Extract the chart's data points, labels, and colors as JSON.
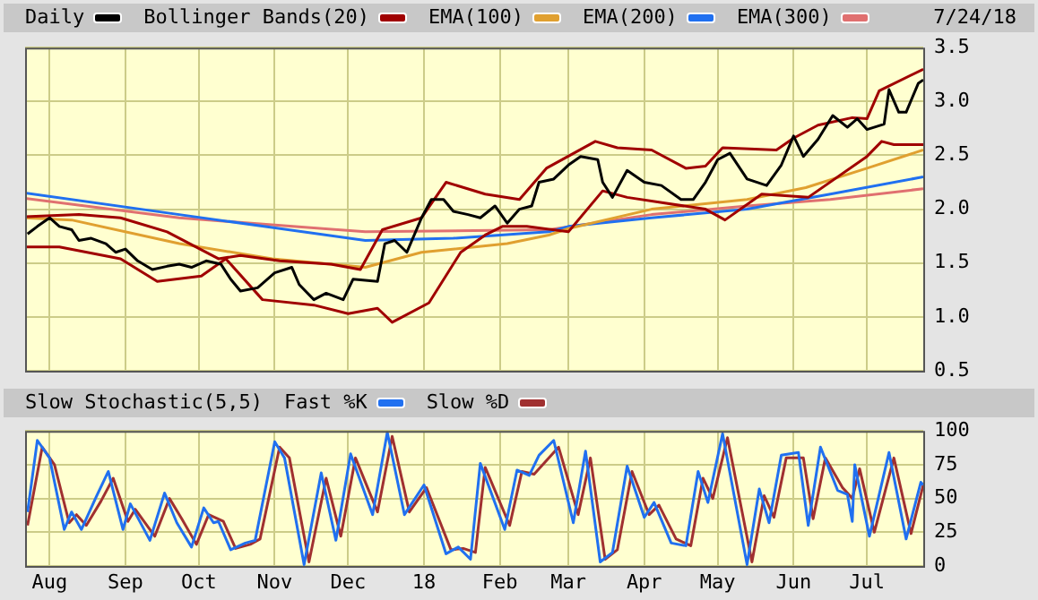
{
  "chart_data": [
    {
      "type": "line",
      "annotations": [
        "7/24/18"
      ],
      "legend": "top left",
      "grid": true,
      "marker": "none",
      "line_style": "solid",
      "tick_labels": "y",
      "xlim": [
        "2017-07-22",
        "2018-07-24"
      ],
      "xticks": [
        {
          "value": "2017-08-01",
          "label": null
        },
        {
          "value": "2017-09-01",
          "label": null
        },
        {
          "value": "2017-10-01",
          "label": null
        },
        {
          "value": "2017-11-01",
          "label": null
        },
        {
          "value": "2017-12-01",
          "label": null
        },
        {
          "value": "2018-01-01",
          "label": null
        },
        {
          "value": "2018-02-01",
          "label": null
        },
        {
          "value": "2018-03-01",
          "label": null
        },
        {
          "value": "2018-04-01",
          "label": null
        },
        {
          "value": "2018-05-01",
          "label": null
        },
        {
          "value": "2018-06-01",
          "label": null
        },
        {
          "value": "2018-07-01",
          "label": null
        }
      ],
      "ylim": [
        0.5,
        3.5
      ],
      "yticks": [
        0.5,
        {
          "value": 1,
          "label": "1.0"
        },
        1.5,
        {
          "value": 2,
          "label": "2.0"
        },
        2.5,
        {
          "value": 3,
          "label": "3.0"
        },
        3.5
      ],
      "series": [
        {
          "name": "Daily",
          "color": "#000000",
          "x": [
            "2017-07-23",
            "2017-07-27",
            "2017-08-01",
            "2017-08-05",
            "2017-08-10",
            "2017-08-13",
            "2017-08-18",
            "2017-08-24",
            "2017-08-28",
            "2017-09-01",
            "2017-09-06",
            "2017-09-12",
            "2017-09-18",
            "2017-09-23",
            "2017-09-28",
            "2017-10-04",
            "2017-10-10",
            "2017-10-14",
            "2017-10-18",
            "2017-10-25",
            "2017-11-01",
            "2017-11-08",
            "2017-11-11",
            "2017-11-17",
            "2017-11-22",
            "2017-11-29",
            "2017-12-03",
            "2017-12-13",
            "2017-12-16",
            "2017-12-20",
            "2017-12-25",
            "2017-12-31",
            "2018-01-04",
            "2018-01-09",
            "2018-01-13",
            "2018-01-19",
            "2018-01-24",
            "2018-01-30",
            "2018-02-04",
            "2018-02-09",
            "2018-02-14",
            "2018-02-17",
            "2018-02-23",
            "2018-03-01",
            "2018-03-06",
            "2018-03-13",
            "2018-03-15",
            "2018-03-19",
            "2018-03-25",
            "2018-04-01",
            "2018-04-08",
            "2018-04-16",
            "2018-04-21",
            "2018-04-26",
            "2018-05-01",
            "2018-05-06",
            "2018-05-13",
            "2018-05-21",
            "2018-05-27",
            "2018-06-01",
            "2018-06-05",
            "2018-06-11",
            "2018-06-17",
            "2018-06-23",
            "2018-06-27",
            "2018-07-01",
            "2018-07-08",
            "2018-07-10",
            "2018-07-14",
            "2018-07-17",
            "2018-07-22",
            "2018-07-24"
          ],
          "values": [
            1.77,
            1.84,
            1.92,
            1.84,
            1.81,
            1.71,
            1.73,
            1.68,
            1.6,
            1.63,
            1.52,
            1.44,
            1.47,
            1.49,
            1.46,
            1.52,
            1.49,
            1.35,
            1.24,
            1.27,
            1.41,
            1.46,
            1.3,
            1.16,
            1.22,
            1.16,
            1.35,
            1.33,
            1.68,
            1.71,
            1.6,
            1.92,
            2.09,
            2.09,
            1.98,
            1.95,
            1.92,
            2.03,
            1.87,
            2.0,
            2.03,
            2.25,
            2.28,
            2.41,
            2.49,
            2.46,
            2.25,
            2.11,
            2.36,
            2.25,
            2.22,
            2.09,
            2.09,
            2.25,
            2.46,
            2.52,
            2.28,
            2.22,
            2.41,
            2.68,
            2.49,
            2.65,
            2.87,
            2.76,
            2.84,
            2.74,
            2.79,
            3.11,
            2.9,
            2.9,
            3.17,
            3.2
          ]
        },
        {
          "name": "Bollinger Bands(20)",
          "color": "#a00000",
          "x": [
            "2017-07-22",
            "2017-08-13",
            "2017-08-30",
            "2017-09-18",
            "2017-10-09",
            "2017-10-18",
            "2017-11-03",
            "2017-11-24",
            "2017-12-06",
            "2017-12-15",
            "2017-12-31",
            "2018-01-10",
            "2018-01-26",
            "2018-02-09",
            "2018-02-20",
            "2018-03-12",
            "2018-03-21",
            "2018-04-04",
            "2018-04-18",
            "2018-04-26",
            "2018-05-03",
            "2018-05-25",
            "2018-06-01",
            "2018-06-11",
            "2018-06-25",
            "2018-07-01",
            "2018-07-06",
            "2018-07-24"
          ],
          "values": [
            1.93,
            1.95,
            1.92,
            1.79,
            1.54,
            1.57,
            1.52,
            1.49,
            1.44,
            1.81,
            1.92,
            2.25,
            2.14,
            2.09,
            2.38,
            2.63,
            2.57,
            2.55,
            2.38,
            2.4,
            2.57,
            2.55,
            2.66,
            2.78,
            2.85,
            2.84,
            3.1,
            3.3
          ]
        },
        {
          "color": "#a00000",
          "x": [
            "2017-07-22",
            "2017-08-05",
            "2017-08-30",
            "2017-09-14",
            "2017-10-02",
            "2017-10-12",
            "2017-10-27",
            "2017-11-17",
            "2017-12-01",
            "2017-12-13",
            "2017-12-19",
            "2018-01-03",
            "2018-01-16",
            "2018-01-26",
            "2018-02-02",
            "2018-02-12",
            "2018-03-01",
            "2018-03-15",
            "2018-03-25",
            "2018-04-26",
            "2018-05-04",
            "2018-05-19",
            "2018-06-07",
            "2018-07-01",
            "2018-07-07",
            "2018-07-12",
            "2018-07-24"
          ],
          "values": [
            1.65,
            1.65,
            1.54,
            1.33,
            1.38,
            1.54,
            1.16,
            1.11,
            1.03,
            1.08,
            0.95,
            1.13,
            1.6,
            1.76,
            1.84,
            1.84,
            1.79,
            2.17,
            2.11,
            2.0,
            1.9,
            2.14,
            2.11,
            2.49,
            2.63,
            2.6,
            2.6
          ]
        },
        {
          "name": "EMA(100)",
          "color": "#e0a030",
          "x": [
            "2017-07-22",
            "2017-08-10",
            "2017-09-23",
            "2017-10-31",
            "2017-12-08",
            "2017-12-31",
            "2018-02-04",
            "2018-02-21",
            "2018-03-01",
            "2018-04-04",
            "2018-05-13",
            "2018-06-06",
            "2018-07-01",
            "2018-07-24"
          ],
          "values": [
            1.92,
            1.9,
            1.68,
            1.54,
            1.46,
            1.6,
            1.68,
            1.76,
            1.82,
            2.0,
            2.09,
            2.2,
            2.38,
            2.55
          ]
        },
        {
          "name": "EMA(200)",
          "color": "#2070f0",
          "x": [
            "2017-07-22",
            "2017-09-23",
            "2017-12-08",
            "2018-01-13",
            "2018-02-21",
            "2018-03-01",
            "2018-04-04",
            "2018-05-13",
            "2018-06-16",
            "2018-07-24"
          ],
          "values": [
            2.15,
            1.95,
            1.71,
            1.73,
            1.79,
            1.84,
            1.92,
            2.0,
            2.14,
            2.3
          ]
        },
        {
          "name": "EMA(300)",
          "color": "#e07070",
          "x": [
            "2017-07-22",
            "2017-09-23",
            "2017-12-08",
            "2018-02-21",
            "2018-04-04",
            "2018-05-13",
            "2018-06-16",
            "2018-07-24"
          ],
          "values": [
            2.1,
            1.92,
            1.79,
            1.81,
            1.95,
            2.03,
            2.09,
            2.19
          ]
        }
      ]
    },
    {
      "type": "line",
      "title": "Slow Stochastic(5,5)",
      "legend": "top left",
      "grid": true,
      "marker": "none",
      "line_style": "solid",
      "xlim": [
        "2017-07-22",
        "2018-07-24"
      ],
      "xticks": [
        {
          "value": "2017-08-01",
          "label": "Aug"
        },
        {
          "value": "2017-09-01",
          "label": "Sep"
        },
        {
          "value": "2017-10-01",
          "label": "Oct"
        },
        {
          "value": "2017-11-01",
          "label": "Nov"
        },
        {
          "value": "2017-12-01",
          "label": "Dec"
        },
        {
          "value": "2018-01-01",
          "label": "18"
        },
        {
          "value": "2018-02-01",
          "label": "Feb"
        },
        {
          "value": "2018-03-01",
          "label": "Mar"
        },
        {
          "value": "2018-04-01",
          "label": "Apr"
        },
        {
          "value": "2018-05-01",
          "label": "May"
        },
        {
          "value": "2018-06-01",
          "label": "Jun"
        },
        {
          "value": "2018-07-01",
          "label": "Jul"
        }
      ],
      "ylim": [
        0,
        100
      ],
      "yticks": [
        0,
        25,
        50,
        75,
        100
      ],
      "series": [
        {
          "name": "Fast %K",
          "color": "#2070f0",
          "x": [
            "2017-07-23",
            "2017-07-27",
            "2017-08-01",
            "2017-08-07",
            "2017-08-10",
            "2017-08-14",
            "2017-08-20",
            "2017-08-25",
            "2017-08-31",
            "2017-09-03",
            "2017-09-11",
            "2017-09-17",
            "2017-09-22",
            "2017-09-28",
            "2017-10-03",
            "2017-10-07",
            "2017-10-09",
            "2017-10-14",
            "2017-10-20",
            "2017-10-24",
            "2017-11-01",
            "2017-11-05",
            "2017-11-13",
            "2017-11-20",
            "2017-11-26",
            "2017-12-02",
            "2017-12-11",
            "2017-12-17",
            "2017-12-24",
            "2018-01-01",
            "2018-01-10",
            "2018-01-15",
            "2018-01-20",
            "2018-01-24",
            "2018-02-03",
            "2018-02-08",
            "2018-02-13",
            "2018-02-17",
            "2018-02-23",
            "2018-03-03",
            "2018-03-08",
            "2018-03-14",
            "2018-03-19",
            "2018-03-25",
            "2018-04-01",
            "2018-04-05",
            "2018-04-12",
            "2018-04-18",
            "2018-04-23",
            "2018-04-27",
            "2018-05-03",
            "2018-05-13",
            "2018-05-18",
            "2018-05-22",
            "2018-05-27",
            "2018-06-03",
            "2018-06-07",
            "2018-06-12",
            "2018-06-19",
            "2018-06-23",
            "2018-06-25",
            "2018-06-26",
            "2018-07-02",
            "2018-07-10",
            "2018-07-17",
            "2018-07-23",
            "2018-07-24"
          ],
          "values": [
            40,
            93,
            80,
            27,
            40,
            27,
            51,
            70,
            27,
            46,
            19,
            54,
            32,
            14,
            43,
            32,
            33,
            12,
            17,
            19,
            92,
            80,
            1,
            69,
            19,
            83,
            38,
            99,
            38,
            60,
            9,
            14,
            5,
            76,
            27,
            71,
            67,
            82,
            93,
            32,
            85,
            3,
            10,
            74,
            36,
            47,
            17,
            15,
            70,
            47,
            98,
            1,
            57,
            32,
            82,
            84,
            30,
            88,
            56,
            53,
            33,
            75,
            22,
            84,
            20,
            62,
            60
          ]
        },
        {
          "name": "Slow %D",
          "color": "#a03030",
          "x": [
            "2017-07-23",
            "2017-07-29",
            "2017-08-03",
            "2017-08-09",
            "2017-08-12",
            "2017-08-16",
            "2017-08-22",
            "2017-08-27",
            "2017-09-02",
            "2017-09-05",
            "2017-09-13",
            "2017-09-19",
            "2017-09-24",
            "2017-09-30",
            "2017-10-05",
            "2017-10-11",
            "2017-10-16",
            "2017-10-22",
            "2017-10-26",
            "2017-11-03",
            "2017-11-07",
            "2017-11-15",
            "2017-11-22",
            "2017-11-28",
            "2017-12-04",
            "2017-12-13",
            "2017-12-19",
            "2017-12-26",
            "2018-01-02",
            "2018-01-12",
            "2018-01-17",
            "2018-01-22",
            "2018-01-26",
            "2018-02-05",
            "2018-02-10",
            "2018-02-15",
            "2018-02-25",
            "2018-03-05",
            "2018-03-10",
            "2018-03-16",
            "2018-03-21",
            "2018-03-27",
            "2018-04-03",
            "2018-04-07",
            "2018-04-14",
            "2018-04-20",
            "2018-04-25",
            "2018-04-29",
            "2018-05-05",
            "2018-05-15",
            "2018-05-20",
            "2018-05-24",
            "2018-05-29",
            "2018-06-05",
            "2018-06-09",
            "2018-06-14",
            "2018-06-21",
            "2018-06-25",
            "2018-06-28",
            "2018-07-04",
            "2018-07-12",
            "2018-07-19",
            "2018-07-24"
          ],
          "values": [
            30,
            88,
            75,
            32,
            38,
            30,
            48,
            65,
            33,
            42,
            22,
            50,
            35,
            16,
            38,
            33,
            13,
            16,
            20,
            88,
            80,
            3,
            65,
            22,
            80,
            40,
            96,
            40,
            58,
            12,
            13,
            10,
            73,
            30,
            70,
            68,
            88,
            38,
            80,
            5,
            12,
            70,
            38,
            45,
            20,
            15,
            65,
            50,
            95,
            3,
            52,
            36,
            80,
            80,
            35,
            80,
            58,
            50,
            72,
            25,
            80,
            24,
            60
          ]
        }
      ]
    }
  ]
}
